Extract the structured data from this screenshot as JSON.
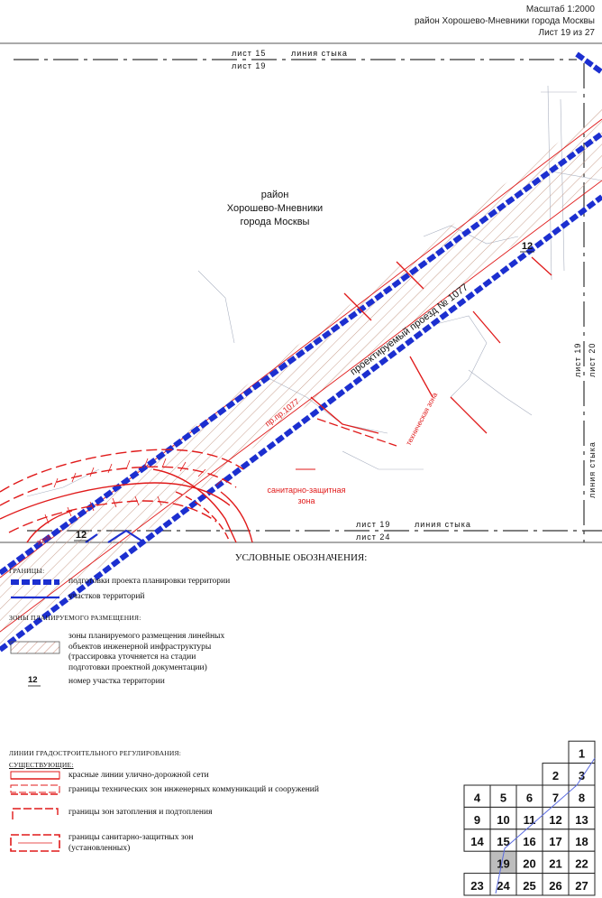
{
  "header": {
    "scale": "Масштаб 1:2000",
    "district": "район Хорошево-Мневники города Москвы",
    "sheet": "Лист 19 из 27"
  },
  "map": {
    "district_label": [
      "район",
      "Хорошево-Мневники",
      "города Москвы"
    ],
    "road_label": "проектируемый проезд № 1077",
    "red_line_label": "пр.пр.1077",
    "tech_zone_label": "техническая зона",
    "sanitary_zone_label": [
      "санитарно-защитная",
      "зона"
    ],
    "parcel_numbers": [
      "12",
      "12"
    ],
    "red_zone_fragment": "зона",
    "junctions": {
      "top": {
        "upper": "лист 15",
        "lower": "лист 19",
        "title": "линия стыка"
      },
      "bottom": {
        "upper": "лист 19",
        "lower": "лист 24",
        "title": "линия стыка"
      },
      "right": {
        "left": "лист 19",
        "right": "лист 20",
        "title": "линия стыка"
      }
    },
    "colors": {
      "boundary": "#1c2fd0",
      "red_line": "#e01a1a",
      "hatch": "#c9a08f",
      "grid": "#9aa3b5"
    }
  },
  "legend": {
    "title": "УСЛОВНЫЕ ОБОЗНАЧЕНИЯ:",
    "groups": {
      "borders": "ГРАНИЦЫ:",
      "zones": "ЗОНЫ ПЛАНИРУЕМОГО РАЗМЕЩЕНИЯ:",
      "regulation": "ЛИНИИ ГРАДОСТРОИТЕЛЬНОГО РЕГУЛИРОВАНИЯ:",
      "existing": "СУЩЕСТВУЮЩИЕ:"
    },
    "items": {
      "project_border": "подготовки проекта планировки территории",
      "parcel_border": "участков территорий",
      "linear_zone": [
        "зоны планируемого размещения линейных",
        "объектов инженерной инфраструктуры",
        "(трассировка уточняется на стадии",
        "подготовки проектной документации)"
      ],
      "parcel_number_symbol": "12",
      "parcel_number": "номер участка территории",
      "red_lines": "красные линии улично-дорожной сети",
      "tech_zones": "границы технических зон инженерных коммуникаций и сооружений",
      "flood_zones": "границы зон затопления и подтопления",
      "sanitary_zones": [
        "границы санитарно-защитных зон",
        "(установленных)"
      ]
    }
  },
  "sheet_index": {
    "active": "19",
    "cells": [
      "1",
      "2",
      "3",
      "4",
      "5",
      "6",
      "7",
      "8",
      "9",
      "10",
      "11",
      "12",
      "13",
      "14",
      "15",
      "16",
      "17",
      "18",
      "19",
      "20",
      "21",
      "22",
      "23",
      "24",
      "25",
      "26",
      "27"
    ]
  }
}
